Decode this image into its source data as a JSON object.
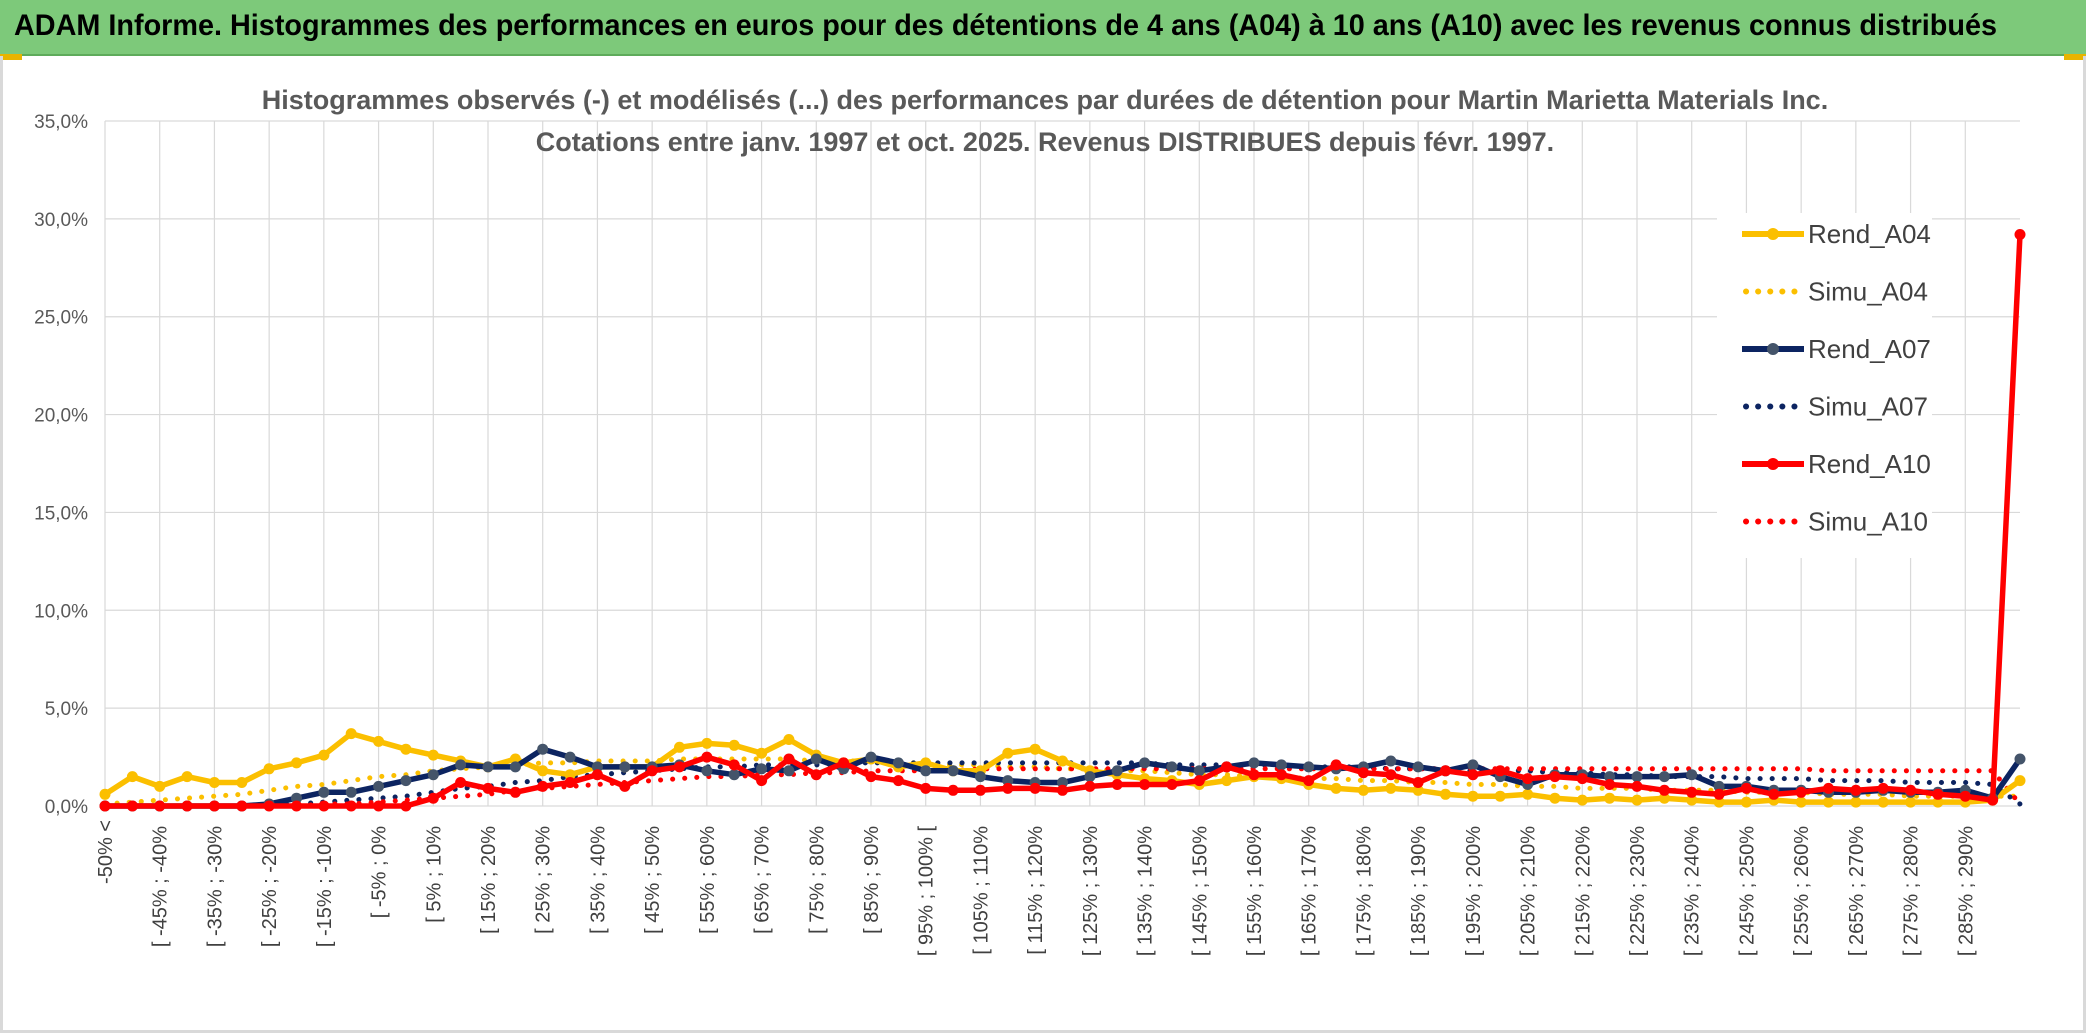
{
  "header": {
    "title": "ADAM Informe. Histogrammes des performances en euros pour des détentions de 4 ans (A04) à 10 ans (A10) avec les revenus connus distribués"
  },
  "colors": {
    "banner": "#7dc97a",
    "a04": "#fbbf00",
    "a07": "#0c2461",
    "a07_marker": "#44546a",
    "a10": "#ff0000",
    "grid": "#d9d9d9"
  },
  "chart_data": {
    "type": "line",
    "title_line1": "Histogrammes observés (-) et modélisés (...) des performances par durées de détention pour Martin Marietta Materials Inc.",
    "title_line2": "Cotations entre janv. 1997 et oct. 2025. Revenus DISTRIBUES depuis févr. 1997.",
    "ylim": [
      0,
      35
    ],
    "y_ticks": [
      "0,0%",
      "5,0%",
      "10,0%",
      "15,0%",
      "20,0%",
      "25,0%",
      "30,0%",
      "35,0%"
    ],
    "x_tick_labels": [
      "-50% <",
      "[ -45% ; -40%",
      "[ -35% ; -30%",
      "[ -25% ; -20%",
      "[ -15% ; -10%",
      "[ -5% ; 0%",
      "[ 5% ; 10%",
      "[ 15% ; 20%",
      "[ 25% ; 30%",
      "[ 35% ; 40%",
      "[ 45% ; 50%",
      "[ 55% ; 60%",
      "[ 65% ; 70%",
      "[ 75% ; 80%",
      "[ 85% ; 90%",
      "[ 95% ; 100% [",
      "[ 105% ; 110%",
      "[ 115% ; 120%",
      "[ 125% ; 130%",
      "[ 135% ; 140%",
      "[ 145% ; 150%",
      "[ 155% ; 160%",
      "[ 165% ; 170%",
      "[ 175% ; 180%",
      "[ 185% ; 190%",
      "[ 195% ; 200%",
      "[ 205% ; 210%",
      "[ 215% ; 220%",
      "[ 225% ; 230%",
      "[ 235% ; 240%",
      "[ 245% ; 250%",
      "[ 255% ; 260%",
      "[ 265% ; 270%",
      "[ 275% ; 280%",
      "[ 285% ; 290%"
    ],
    "series": [
      {
        "name": "Rend_A04",
        "style": "solid",
        "color": "#fbbf00",
        "values": [
          0.6,
          1.5,
          1.0,
          1.5,
          1.2,
          1.2,
          1.9,
          2.2,
          2.6,
          3.7,
          3.3,
          2.9,
          2.6,
          2.3,
          2.0,
          2.4,
          1.8,
          1.6,
          2.0,
          2.0,
          2.0,
          3.0,
          3.2,
          3.1,
          2.7,
          3.4,
          2.6,
          2.2,
          2.4,
          2.0,
          2.2,
          1.8,
          1.8,
          2.7,
          2.9,
          2.3,
          1.8,
          1.6,
          1.4,
          1.3,
          1.1,
          1.3,
          1.5,
          1.4,
          1.1,
          0.9,
          0.8,
          0.9,
          0.8,
          0.6,
          0.5,
          0.5,
          0.6,
          0.4,
          0.3,
          0.4,
          0.3,
          0.4,
          0.3,
          0.2,
          0.2,
          0.3,
          0.2,
          0.2,
          0.2,
          0.2,
          0.2,
          0.2,
          0.2,
          0.3,
          1.3
        ]
      },
      {
        "name": "Simu_A04",
        "style": "dotted",
        "color": "#fbbf00",
        "values": [
          0.1,
          0.2,
          0.3,
          0.4,
          0.5,
          0.6,
          0.8,
          1.0,
          1.1,
          1.3,
          1.5,
          1.6,
          1.8,
          1.9,
          2.0,
          2.1,
          2.2,
          2.2,
          2.3,
          2.3,
          2.3,
          2.4,
          2.4,
          2.4,
          2.4,
          2.4,
          2.3,
          2.3,
          2.3,
          2.2,
          2.2,
          2.1,
          2.1,
          2.0,
          2.0,
          1.9,
          1.9,
          1.8,
          1.8,
          1.7,
          1.6,
          1.6,
          1.5,
          1.5,
          1.4,
          1.4,
          1.3,
          1.3,
          1.2,
          1.2,
          1.1,
          1.1,
          1.0,
          1.0,
          0.9,
          0.9,
          0.9,
          0.8,
          0.8,
          0.8,
          0.7,
          0.7,
          0.7,
          0.6,
          0.6,
          0.6,
          0.5,
          0.5,
          0.5,
          0.5,
          0.5
        ]
      },
      {
        "name": "Rend_A07",
        "style": "solid",
        "color": "#0c2461",
        "values": [
          0.0,
          0.0,
          0.0,
          0.0,
          0.0,
          0.0,
          0.1,
          0.4,
          0.7,
          0.7,
          1.0,
          1.3,
          1.6,
          2.1,
          2.0,
          2.0,
          2.9,
          2.5,
          2.0,
          2.0,
          2.0,
          2.1,
          1.8,
          1.6,
          1.9,
          1.8,
          2.4,
          1.9,
          2.5,
          2.2,
          1.8,
          1.8,
          1.5,
          1.3,
          1.2,
          1.2,
          1.5,
          1.8,
          2.2,
          2.0,
          1.8,
          2.0,
          2.2,
          2.1,
          2.0,
          1.9,
          2.0,
          2.3,
          2.0,
          1.8,
          2.1,
          1.5,
          1.1,
          1.6,
          1.6,
          1.5,
          1.5,
          1.5,
          1.6,
          1.0,
          1.0,
          0.8,
          0.8,
          0.7,
          0.7,
          0.8,
          0.7,
          0.7,
          0.8,
          0.4,
          2.4
        ]
      },
      {
        "name": "Simu_A07",
        "style": "dotted",
        "color": "#0c2461",
        "values": [
          0.0,
          0.0,
          0.0,
          0.0,
          0.0,
          0.0,
          0.1,
          0.1,
          0.2,
          0.3,
          0.4,
          0.5,
          0.7,
          0.9,
          1.0,
          1.2,
          1.3,
          1.5,
          1.6,
          1.7,
          1.8,
          1.9,
          2.0,
          2.0,
          2.1,
          2.1,
          2.1,
          2.2,
          2.2,
          2.2,
          2.2,
          2.2,
          2.2,
          2.2,
          2.2,
          2.2,
          2.2,
          2.2,
          2.2,
          2.1,
          2.1,
          2.1,
          2.1,
          2.1,
          2.0,
          2.0,
          2.0,
          1.9,
          1.9,
          1.9,
          1.8,
          1.8,
          1.8,
          1.7,
          1.7,
          1.6,
          1.6,
          1.5,
          1.5,
          1.5,
          1.4,
          1.4,
          1.4,
          1.3,
          1.3,
          1.3,
          1.2,
          1.2,
          1.2,
          1.1,
          0.1
        ]
      },
      {
        "name": "Rend_A10",
        "style": "solid",
        "color": "#ff0000",
        "values": [
          0.0,
          0.0,
          0.0,
          0.0,
          0.0,
          0.0,
          0.0,
          0.0,
          0.0,
          0.0,
          0.0,
          0.0,
          0.4,
          1.2,
          0.9,
          0.7,
          1.0,
          1.2,
          1.6,
          1.0,
          1.8,
          2.0,
          2.5,
          2.1,
          1.3,
          2.4,
          1.6,
          2.2,
          1.5,
          1.3,
          0.9,
          0.8,
          0.8,
          0.9,
          0.9,
          0.8,
          1.0,
          1.1,
          1.1,
          1.1,
          1.3,
          2.0,
          1.6,
          1.6,
          1.3,
          2.1,
          1.7,
          1.6,
          1.2,
          1.8,
          1.6,
          1.8,
          1.4,
          1.5,
          1.4,
          1.1,
          1.0,
          0.8,
          0.7,
          0.6,
          0.9,
          0.6,
          0.7,
          0.9,
          0.8,
          0.9,
          0.8,
          0.6,
          0.5,
          0.3,
          29.2
        ]
      },
      {
        "name": "Simu_A10",
        "style": "dotted",
        "color": "#ff0000",
        "values": [
          0.0,
          0.0,
          0.0,
          0.0,
          0.0,
          0.0,
          0.0,
          0.0,
          0.1,
          0.1,
          0.2,
          0.3,
          0.4,
          0.5,
          0.6,
          0.8,
          0.9,
          1.0,
          1.1,
          1.2,
          1.3,
          1.4,
          1.5,
          1.5,
          1.6,
          1.6,
          1.7,
          1.7,
          1.8,
          1.8,
          1.8,
          1.8,
          1.9,
          1.9,
          1.9,
          1.9,
          1.9,
          1.9,
          1.9,
          1.9,
          1.9,
          1.9,
          1.9,
          1.9,
          1.9,
          1.9,
          1.9,
          1.9,
          1.9,
          1.9,
          1.9,
          1.9,
          1.9,
          1.9,
          1.9,
          1.9,
          1.9,
          1.9,
          1.9,
          1.9,
          1.9,
          1.9,
          1.9,
          1.8,
          1.8,
          1.8,
          1.8,
          1.8,
          1.8,
          1.8,
          0.1
        ]
      }
    ],
    "legend": [
      "Rend_A04",
      "Simu_A04",
      "Rend_A07",
      "Simu_A07",
      "Rend_A10",
      "Simu_A10"
    ],
    "legend_position": "right"
  }
}
